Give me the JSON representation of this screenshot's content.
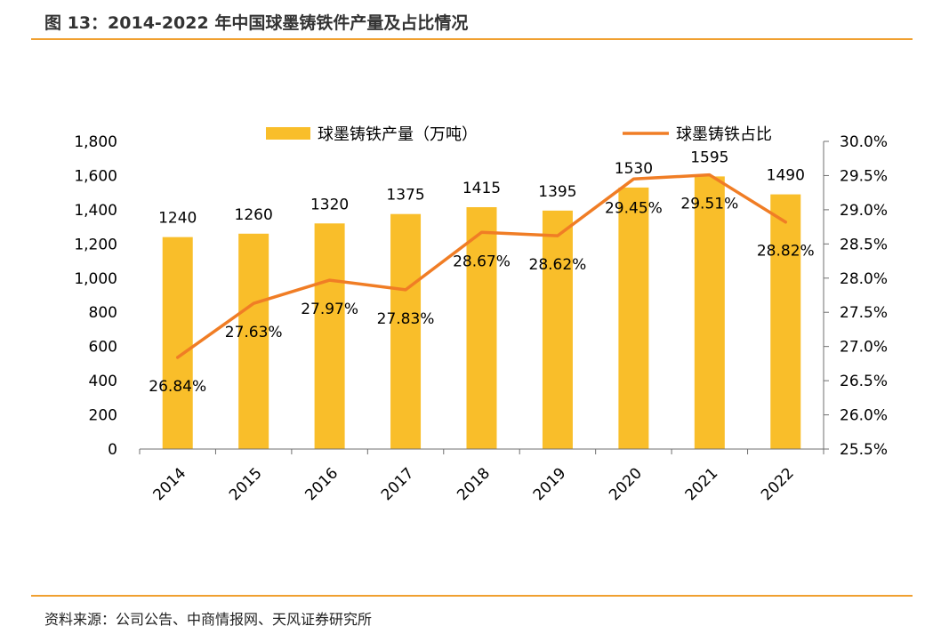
{
  "header": {
    "title": "图 13：2014-2022 年中国球墨铸铁件产量及占比情况"
  },
  "footer": {
    "source": "资料来源：公司公告、中商情报网、天风证券研究所"
  },
  "colors": {
    "bar": "#f9be2a",
    "line": "#f07d25",
    "rule": "#f0a030",
    "axis": "#6f6f6f"
  },
  "chart_data": {
    "type": "bar+line",
    "categories": [
      "2014",
      "2015",
      "2016",
      "2017",
      "2018",
      "2019",
      "2020",
      "2021",
      "2022"
    ],
    "series": [
      {
        "name": "球墨铸铁产量（万吨）",
        "type": "bar",
        "axis": "left",
        "values": [
          1240,
          1260,
          1320,
          1375,
          1415,
          1395,
          1530,
          1595,
          1490
        ],
        "labels": [
          "1240",
          "1260",
          "1320",
          "1375",
          "1415",
          "1395",
          "1530",
          "1595",
          "1490"
        ]
      },
      {
        "name": "球墨铸铁占比",
        "type": "line",
        "axis": "right",
        "values": [
          26.84,
          27.63,
          27.97,
          27.83,
          28.67,
          28.62,
          29.45,
          29.51,
          28.82
        ],
        "labels": [
          "26.84%",
          "27.63%",
          "27.97%",
          "27.83%",
          "28.67%",
          "28.62%",
          "29.45%",
          "29.51%",
          "28.82%"
        ]
      }
    ],
    "left_axis": {
      "ylim": [
        0,
        1800
      ],
      "ticks": [
        0,
        200,
        400,
        600,
        800,
        1000,
        1200,
        1400,
        1600,
        1800
      ],
      "tick_labels": [
        "0",
        "200",
        "400",
        "600",
        "800",
        "1,000",
        "1,200",
        "1,400",
        "1,600",
        "1,800"
      ]
    },
    "right_axis": {
      "ylim": [
        25.5,
        30.0
      ],
      "ticks": [
        25.5,
        26.0,
        26.5,
        27.0,
        27.5,
        28.0,
        28.5,
        29.0,
        29.5,
        30.0
      ],
      "tick_labels": [
        "25.5%",
        "26.0%",
        "26.5%",
        "27.0%",
        "27.5%",
        "28.0%",
        "28.5%",
        "29.0%",
        "29.5%",
        "30.0%"
      ]
    },
    "legend_position": "top",
    "grid": false
  }
}
